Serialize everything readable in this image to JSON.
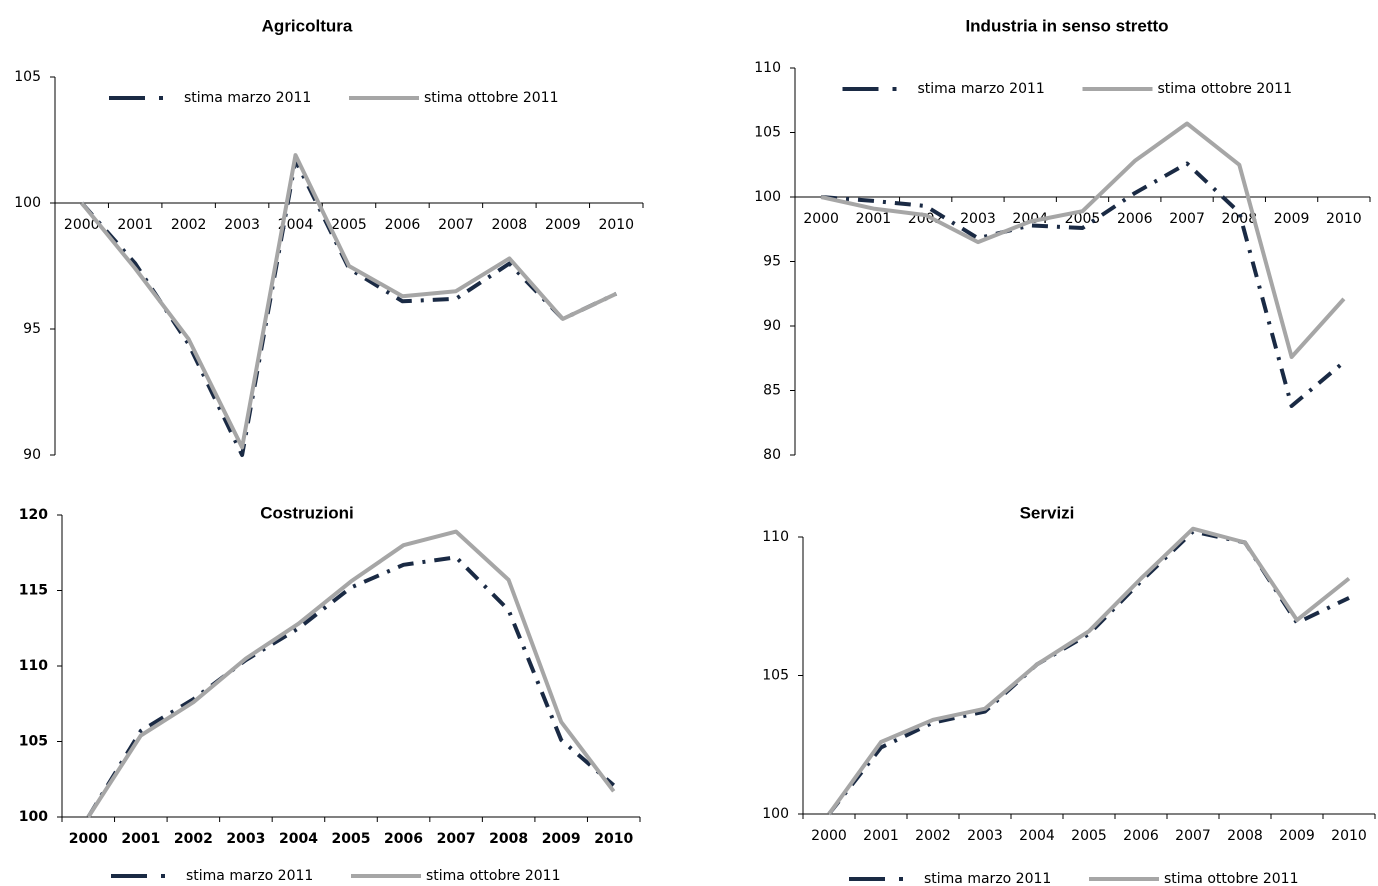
{
  "chart_data": [
    {
      "type": "line",
      "title": "Agricoltura",
      "legend": "top",
      "categories": [
        "2000",
        "2001",
        "2002",
        "2003",
        "2004",
        "2005",
        "2006",
        "2007",
        "2008",
        "2009",
        "2010"
      ],
      "series": [
        {
          "name": "stima marzo 2011",
          "color": "#1a2a44",
          "values": [
            100,
            97.6,
            94.4,
            90.0,
            101.7,
            97.4,
            96.1,
            96.2,
            97.6,
            95.4,
            96.4
          ]
        },
        {
          "name": "stima ottobre 2011",
          "color": "#a6a6a6",
          "values": [
            100,
            97.4,
            94.6,
            90.3,
            101.9,
            97.5,
            96.3,
            96.5,
            97.8,
            95.4,
            96.4
          ]
        }
      ],
      "ylim": [
        90,
        105
      ],
      "yticks": [
        90,
        95,
        100,
        105
      ]
    },
    {
      "type": "line",
      "title": "Industria in senso stretto",
      "legend": "top",
      "categories": [
        "2000",
        "2001",
        "2002",
        "2003",
        "2004",
        "2005",
        "2006",
        "2007",
        "2008",
        "2009",
        "2010"
      ],
      "series": [
        {
          "name": "stima marzo 2011",
          "color": "#1a2a44",
          "values": [
            100,
            99.7,
            99.3,
            96.8,
            97.8,
            97.6,
            100.3,
            102.6,
            98.8,
            83.8,
            87.2
          ]
        },
        {
          "name": "stima ottobre 2011",
          "color": "#a6a6a6",
          "values": [
            100,
            99.1,
            98.6,
            96.5,
            98.1,
            98.9,
            102.8,
            105.7,
            102.5,
            87.6,
            92.1
          ]
        }
      ],
      "ylim": [
        80,
        110
      ],
      "yticks": [
        80,
        85,
        90,
        95,
        100,
        105,
        110
      ]
    },
    {
      "type": "line",
      "title": "Costruzioni",
      "legend": "bottom",
      "categories": [
        "2000",
        "2001",
        "2002",
        "2003",
        "2004",
        "2005",
        "2006",
        "2007",
        "2008",
        "2009",
        "2010"
      ],
      "series": [
        {
          "name": "stima marzo 2011",
          "color": "#1a2a44",
          "values": [
            100,
            105.7,
            107.8,
            110.4,
            112.5,
            115.2,
            116.7,
            117.2,
            113.7,
            105.1,
            102.1
          ]
        },
        {
          "name": "stima ottobre 2011",
          "color": "#a6a6a6",
          "values": [
            100,
            105.4,
            107.6,
            110.5,
            112.8,
            115.6,
            118.0,
            118.9,
            115.7,
            106.3,
            101.7
          ]
        }
      ],
      "ylim": [
        100,
        120
      ],
      "yticks": [
        100,
        105,
        110,
        115,
        120
      ]
    },
    {
      "type": "line",
      "title": "Servizi",
      "legend": "bottom",
      "categories": [
        "2000",
        "2001",
        "2002",
        "2003",
        "2004",
        "2005",
        "2006",
        "2007",
        "2008",
        "2009",
        "2010"
      ],
      "series": [
        {
          "name": "stima marzo 2011",
          "color": "#1a2a44",
          "values": [
            100,
            102.4,
            103.3,
            103.7,
            105.4,
            106.5,
            108.4,
            110.2,
            109.8,
            106.9,
            107.8
          ]
        },
        {
          "name": "stima ottobre 2011",
          "color": "#a6a6a6",
          "values": [
            100,
            102.6,
            103.4,
            103.8,
            105.4,
            106.6,
            108.5,
            110.3,
            109.8,
            107.0,
            108.5
          ]
        }
      ],
      "ylim": [
        100,
        110
      ],
      "yticks": [
        100,
        105,
        110
      ]
    }
  ]
}
